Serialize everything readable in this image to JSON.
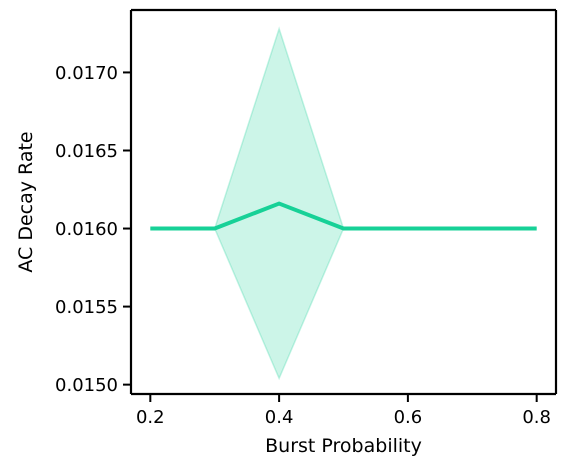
{
  "chart_data": {
    "type": "line",
    "title": "",
    "xlabel": "Burst Probability",
    "ylabel": "AC Decay Rate",
    "xlim": [
      0.17,
      0.83
    ],
    "ylim": [
      0.01494,
      0.0174
    ],
    "xticks": [
      0.2,
      0.4,
      0.6,
      0.8
    ],
    "xtick_labels": [
      "0.2",
      "0.4",
      "0.6",
      "0.8"
    ],
    "yticks": [
      0.015,
      0.0155,
      0.016,
      0.0165,
      0.017
    ],
    "ytick_labels": [
      "0.0150",
      "0.0155",
      "0.0160",
      "0.0165",
      "0.0170"
    ],
    "grid": false,
    "legend": false,
    "series": [
      {
        "x": [
          0.2,
          0.3,
          0.4,
          0.5,
          0.6,
          0.7,
          0.8
        ],
        "y": [
          0.016,
          0.016,
          0.01616,
          0.016,
          0.016,
          0.016,
          0.016
        ],
        "ci_lower": [
          0.016,
          0.016,
          0.01504,
          0.016,
          0.016,
          0.016,
          0.016
        ],
        "ci_upper": [
          0.016,
          0.016,
          0.01728,
          0.016,
          0.016,
          0.016,
          0.016
        ],
        "color": "#17d197",
        "band_color": "#17d197"
      }
    ]
  }
}
